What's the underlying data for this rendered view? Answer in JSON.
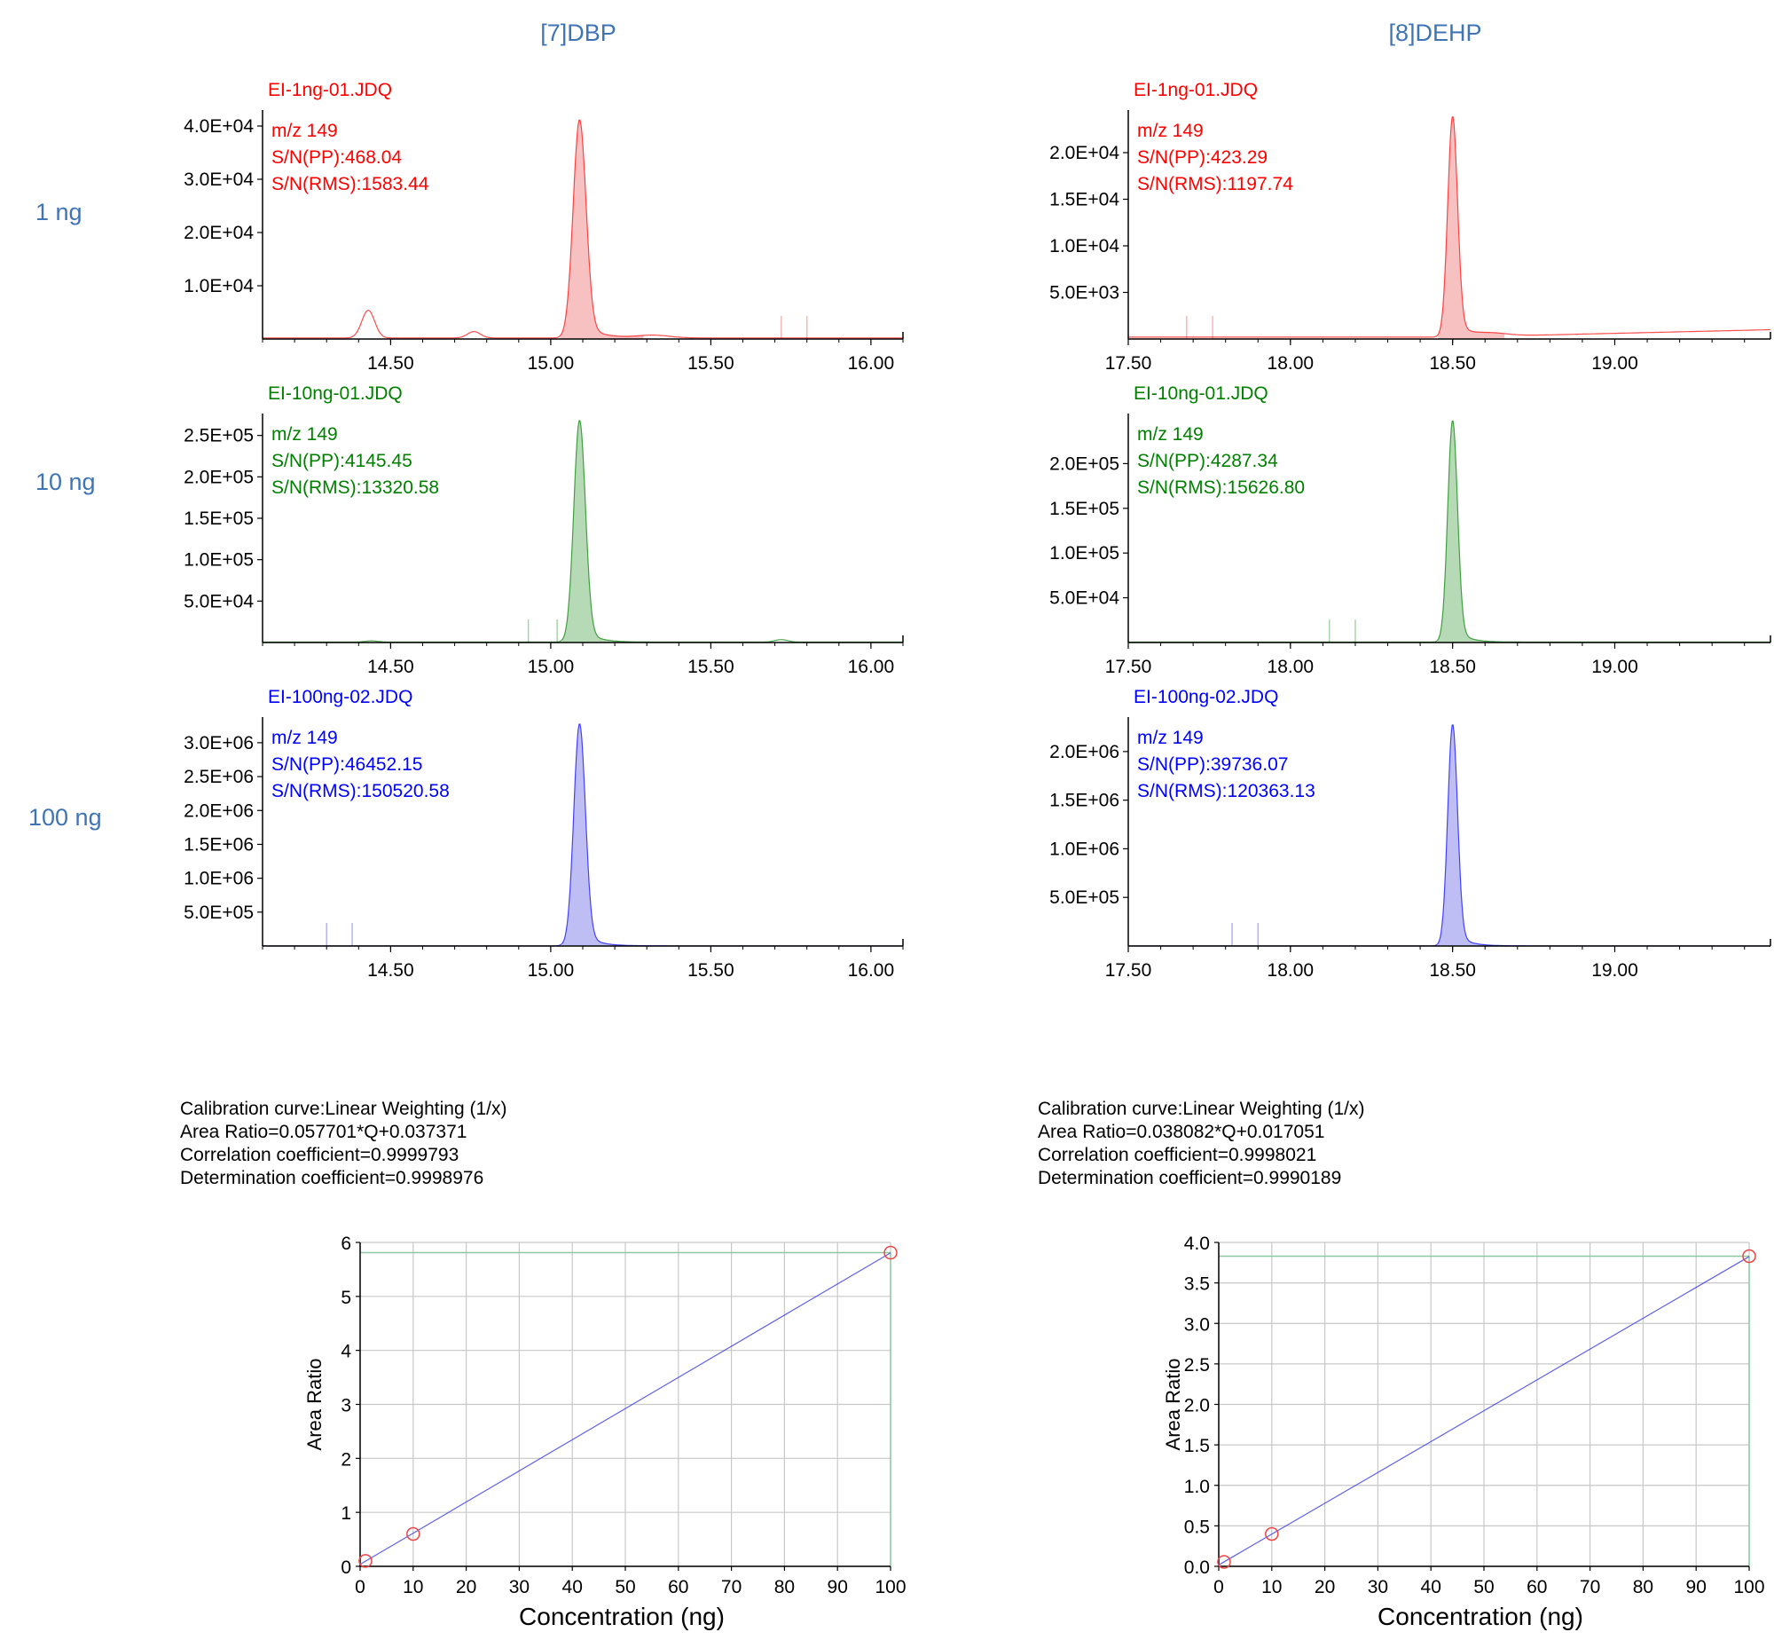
{
  "compounds": [
    {
      "name": "[7]DBP"
    },
    {
      "name": "[8]DEHP"
    }
  ],
  "rows": [
    {
      "label": "1 ng",
      "color": "#ff0000",
      "fill": "#f7b6b6"
    },
    {
      "label": "10 ng",
      "color": "#008000",
      "fill": "#a9d4a9"
    },
    {
      "label": "100 ng",
      "color": "#0000ff",
      "fill": "#b3b3f2"
    }
  ],
  "row_label_color": "#3f74b5",
  "chromatograms": [
    {
      "compound": 0,
      "row": 0,
      "file": "EI-1ng-01.JDQ",
      "mz": "m/z 149",
      "sn_pp": "S/N(PP):468.04",
      "sn_rms": "S/N(RMS):1583.44",
      "x_range": [
        14.1,
        16.1
      ],
      "x_ticks": [
        "14.50",
        "15.00",
        "15.50",
        "16.00"
      ],
      "y_max": 42000,
      "y_ticks": [
        {
          "v": 10000,
          "label": "1.0E+04"
        },
        {
          "v": 20000,
          "label": "2.0E+04"
        },
        {
          "v": 30000,
          "label": "3.0E+04"
        },
        {
          "v": 40000,
          "label": "4.0E+04"
        }
      ],
      "peak": {
        "rt": 15.09,
        "height": 41000,
        "width": 0.02,
        "tail": 0.05
      },
      "small_peaks": [
        {
          "rt": 14.43,
          "height": 5200,
          "width": 0.02
        },
        {
          "rt": 14.76,
          "height": 1200,
          "width": 0.02
        },
        {
          "rt": 15.32,
          "height": 500,
          "width": 0.05
        }
      ],
      "markers": [
        15.72,
        15.8
      ],
      "baseline": 200
    },
    {
      "compound": 0,
      "row": 1,
      "file": "EI-10ng-01.JDQ",
      "mz": "m/z 149",
      "sn_pp": "S/N(PP):4145.45",
      "sn_rms": "S/N(RMS):13320.58",
      "x_range": [
        14.1,
        16.1
      ],
      "x_ticks": [
        "14.50",
        "15.00",
        "15.50",
        "16.00"
      ],
      "y_max": 270000,
      "y_ticks": [
        {
          "v": 50000,
          "label": "5.0E+04"
        },
        {
          "v": 100000,
          "label": "1.0E+05"
        },
        {
          "v": 150000,
          "label": "1.5E+05"
        },
        {
          "v": 200000,
          "label": "2.0E+05"
        },
        {
          "v": 250000,
          "label": "2.5E+05"
        }
      ],
      "peak": {
        "rt": 15.09,
        "height": 268000,
        "width": 0.018,
        "tail": 0.04
      },
      "small_peaks": [
        {
          "rt": 14.44,
          "height": 1500,
          "width": 0.02
        },
        {
          "rt": 15.72,
          "height": 3000,
          "width": 0.02
        }
      ],
      "markers": [
        14.93,
        15.02
      ],
      "baseline": 500
    },
    {
      "compound": 0,
      "row": 2,
      "file": "EI-100ng-02.JDQ",
      "mz": "m/z 149",
      "sn_pp": "S/N(PP):46452.15",
      "sn_rms": "S/N(RMS):150520.58",
      "x_range": [
        14.1,
        16.1
      ],
      "x_ticks": [
        "14.50",
        "15.00",
        "15.50",
        "16.00"
      ],
      "y_max": 3300000,
      "y_ticks": [
        {
          "v": 500000,
          "label": "5.0E+05"
        },
        {
          "v": 1000000,
          "label": "1.0E+06"
        },
        {
          "v": 1500000,
          "label": "1.5E+06"
        },
        {
          "v": 2000000,
          "label": "2.0E+06"
        },
        {
          "v": 2500000,
          "label": "2.5E+06"
        },
        {
          "v": 3000000,
          "label": "3.0E+06"
        }
      ],
      "peak": {
        "rt": 15.09,
        "height": 3280000,
        "width": 0.018,
        "tail": 0.04
      },
      "small_peaks": [],
      "markers": [
        14.3,
        14.38
      ],
      "baseline": 3000
    },
    {
      "compound": 1,
      "row": 0,
      "file": "EI-1ng-01.JDQ",
      "mz": "m/z 149",
      "sn_pp": "S/N(PP):423.29",
      "sn_rms": "S/N(RMS):1197.74",
      "x_range": [
        17.5,
        19.48
      ],
      "x_ticks": [
        "17.50",
        "18.00",
        "18.50",
        "19.00"
      ],
      "y_max": 24000,
      "y_ticks": [
        {
          "v": 5000,
          "label": "5.0E+03"
        },
        {
          "v": 10000,
          "label": "1.0E+04"
        },
        {
          "v": 15000,
          "label": "1.5E+04"
        },
        {
          "v": 20000,
          "label": "2.0E+04"
        }
      ],
      "peak": {
        "rt": 18.5,
        "height": 23700,
        "width": 0.015,
        "tail": 0.04
      },
      "small_peaks": [
        {
          "rt": 18.62,
          "height": 300,
          "width": 0.05
        }
      ],
      "markers": [
        17.68,
        17.76
      ],
      "baseline": 200,
      "rising_baseline": 800
    },
    {
      "compound": 1,
      "row": 1,
      "file": "EI-10ng-01.JDQ",
      "mz": "m/z 149",
      "sn_pp": "S/N(PP):4287.34",
      "sn_rms": "S/N(RMS):15626.80",
      "x_range": [
        17.5,
        19.48
      ],
      "x_ticks": [
        "17.50",
        "18.00",
        "18.50",
        "19.00"
      ],
      "y_max": 250000,
      "y_ticks": [
        {
          "v": 50000,
          "label": "5.0E+04"
        },
        {
          "v": 100000,
          "label": "1.0E+05"
        },
        {
          "v": 150000,
          "label": "1.5E+05"
        },
        {
          "v": 200000,
          "label": "2.0E+05"
        }
      ],
      "peak": {
        "rt": 18.5,
        "height": 248000,
        "width": 0.015,
        "tail": 0.035
      },
      "small_peaks": [],
      "markers": [
        18.12,
        18.2
      ],
      "baseline": 500
    },
    {
      "compound": 1,
      "row": 2,
      "file": "EI-100ng-02.JDQ",
      "mz": "m/z 149",
      "sn_pp": "S/N(PP):39736.07",
      "sn_rms": "S/N(RMS):120363.13",
      "x_range": [
        17.5,
        19.48
      ],
      "x_ticks": [
        "17.50",
        "18.00",
        "18.50",
        "19.00"
      ],
      "y_max": 2300000,
      "y_ticks": [
        {
          "v": 500000,
          "label": "5.0E+05"
        },
        {
          "v": 1000000,
          "label": "1.0E+06"
        },
        {
          "v": 1500000,
          "label": "1.5E+06"
        },
        {
          "v": 2000000,
          "label": "2.0E+06"
        }
      ],
      "peak": {
        "rt": 18.5,
        "height": 2280000,
        "width": 0.015,
        "tail": 0.035
      },
      "small_peaks": [],
      "markers": [
        17.82,
        17.9
      ],
      "baseline": 2000
    }
  ],
  "calibration_text": [
    [
      "Calibration curve:Linear Weighting (1/x)",
      "Area Ratio=0.057701*Q+0.037371",
      "Correlation coefficient=0.9999793",
      "Determination coefficient=0.9998976"
    ],
    [
      "Calibration curve:Linear Weighting (1/x)",
      "Area Ratio=0.038082*Q+0.017051",
      "Correlation coefficient=0.9998021",
      "Determination coefficient=0.9990189"
    ]
  ],
  "chart_data": [
    {
      "type": "scatter",
      "title": "",
      "xlabel": "Concentration (ng)",
      "ylabel": "Area Ratio",
      "xlim": [
        0,
        100
      ],
      "ylim": [
        0,
        6
      ],
      "x_ticks": [
        "0",
        "10",
        "20",
        "30",
        "40",
        "50",
        "60",
        "70",
        "80",
        "90",
        "100"
      ],
      "y_ticks": [
        "0",
        "1",
        "2",
        "3",
        "4",
        "5",
        "6"
      ],
      "points": [
        {
          "x": 1,
          "y": 0.1
        },
        {
          "x": 10,
          "y": 0.6
        },
        {
          "x": 100,
          "y": 5.81
        }
      ],
      "fit": {
        "slope": 0.057701,
        "intercept": 0.037371
      }
    },
    {
      "type": "scatter",
      "title": "",
      "xlabel": "Concentration (ng)",
      "ylabel": "Area Ratio",
      "xlim": [
        0,
        100
      ],
      "ylim": [
        0,
        4
      ],
      "x_ticks": [
        "0",
        "10",
        "20",
        "30",
        "40",
        "50",
        "60",
        "70",
        "80",
        "90",
        "100"
      ],
      "y_ticks": [
        "0.0",
        "0.5",
        "1.0",
        "1.5",
        "2.0",
        "2.5",
        "3.0",
        "3.5",
        "4.0"
      ],
      "points": [
        {
          "x": 1,
          "y": 0.055
        },
        {
          "x": 10,
          "y": 0.4
        },
        {
          "x": 100,
          "y": 3.83
        }
      ],
      "fit": {
        "slope": 0.038082,
        "intercept": 0.017051
      }
    }
  ],
  "colors": {
    "fit_line": "#3a3adf",
    "point": "#ef4444",
    "grid": "#c8c8c8",
    "axis": "#000000",
    "ref_line": "#8cc8a0"
  }
}
